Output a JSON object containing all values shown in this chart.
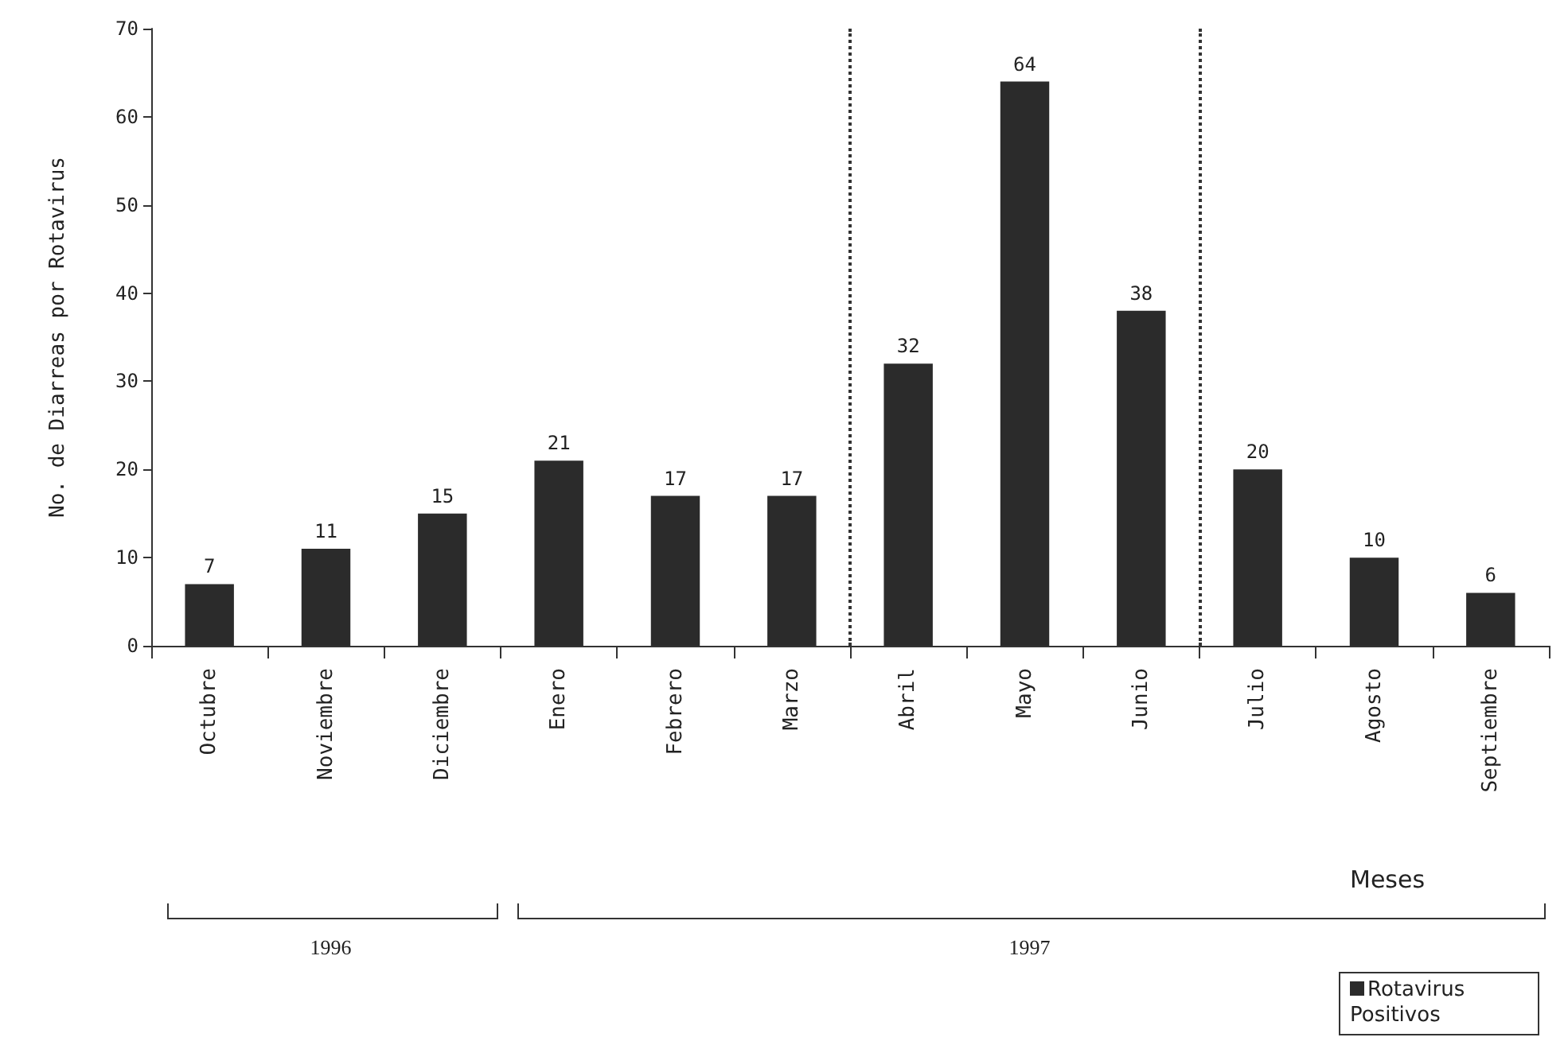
{
  "chart_data": {
    "type": "bar",
    "ylabel": "No. de Diarreas por Rotavirus",
    "xlabel": "Meses",
    "categories": [
      "Octubre",
      "Noviembre",
      "Diciembre",
      "Enero",
      "Febrero",
      "Marzo",
      "Abril",
      "Mayo",
      "Junio",
      "Julio",
      "Agosto",
      "Septiembre"
    ],
    "series": [
      {
        "name": "Rotavirus Positivos",
        "color": "#2b2b2b",
        "values": [
          7,
          11,
          15,
          21,
          17,
          17,
          32,
          64,
          38,
          20,
          10,
          6
        ]
      }
    ],
    "data_labels": true,
    "ylim": [
      0,
      70
    ],
    "yticks": [
      0,
      10,
      20,
      30,
      40,
      50,
      60,
      70
    ],
    "grid": false,
    "legend": "bottom right",
    "annotations": [
      "1996",
      "1997"
    ]
  }
}
